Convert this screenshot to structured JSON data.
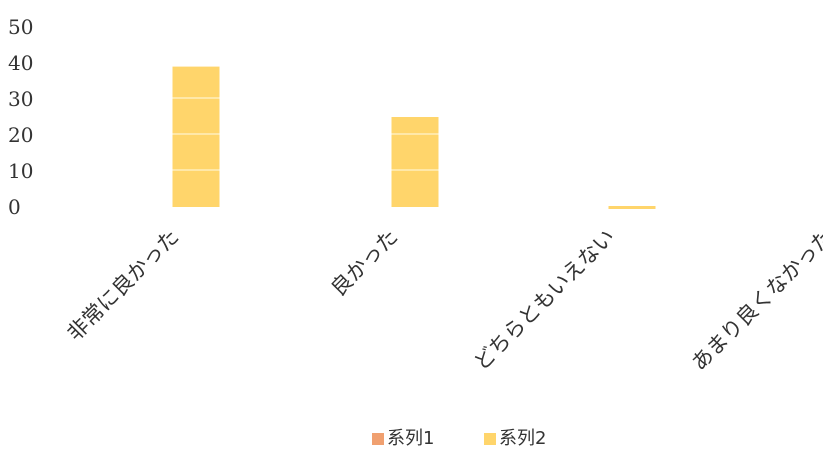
{
  "chart_data": {
    "type": "bar",
    "categories": [
      "非常に良かった",
      "良かった",
      "どちらともいえない",
      "あまり良くなかった"
    ],
    "series": [
      {
        "name": "系列1",
        "values": [
          0,
          0,
          0,
          0
        ],
        "color": "#f0a070"
      },
      {
        "name": "系列2",
        "values": [
          39,
          25,
          0,
          0
        ],
        "color": "#ffd56b"
      }
    ],
    "y_ticks": [
      0,
      10,
      20,
      30,
      40,
      50
    ],
    "ylim": [
      0,
      50
    ],
    "grid": false,
    "legend_position": "bottom"
  }
}
